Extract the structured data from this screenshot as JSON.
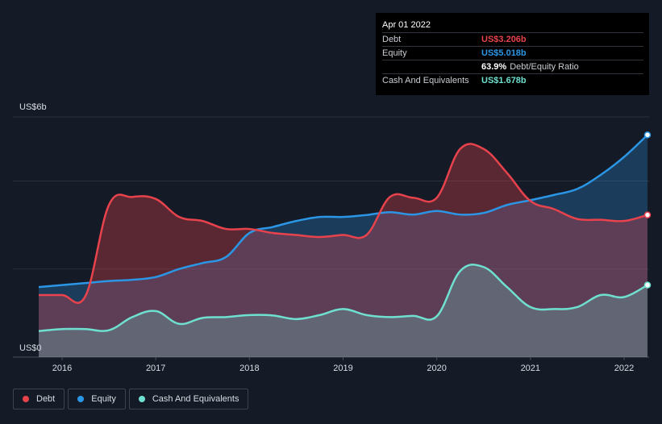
{
  "tooltip": {
    "date": "Apr 01 2022",
    "rows": [
      {
        "label": "Debt",
        "value": "US$3.206b",
        "extra": ""
      },
      {
        "label": "Equity",
        "value": "US$5.018b",
        "extra": ""
      },
      {
        "label": "",
        "value": "63.9%",
        "extra": "Debt/Equity Ratio"
      },
      {
        "label": "Cash And Equivalents",
        "value": "US$1.678b",
        "extra": ""
      }
    ]
  },
  "legend": [
    {
      "label": "Debt",
      "color": "#e8434c"
    },
    {
      "label": "Equity",
      "color": "#2b96e6"
    },
    {
      "label": "Cash And Equivalents",
      "color": "#6fe0cf"
    }
  ],
  "chart_data": {
    "type": "area",
    "title": "",
    "xlabel": "",
    "ylabel": "",
    "y_top_label": "US$6b",
    "y_bottom_label": "US$0",
    "ylim": [
      0,
      6
    ],
    "xlim": [
      2015.75,
      2022.25
    ],
    "x_ticks": [
      {
        "value": 2016,
        "label": "2016"
      },
      {
        "value": 2017,
        "label": "2017"
      },
      {
        "value": 2018,
        "label": "2018"
      },
      {
        "value": 2019,
        "label": "2019"
      },
      {
        "value": 2020,
        "label": "2020"
      },
      {
        "value": 2021,
        "label": "2021"
      },
      {
        "value": 2022,
        "label": "2022"
      }
    ],
    "gridlines_y": [
      0,
      2.2,
      4.4,
      6
    ],
    "grid": true,
    "legend_position": "bottom-left",
    "series": [
      {
        "name": "Equity",
        "color": "#2b96e6",
        "x": [
          2015.75,
          2016.0,
          2016.25,
          2016.5,
          2016.75,
          2017.0,
          2017.25,
          2017.5,
          2017.75,
          2018.0,
          2018.25,
          2018.5,
          2018.75,
          2019.0,
          2019.25,
          2019.5,
          2019.75,
          2020.0,
          2020.25,
          2020.5,
          2020.75,
          2021.0,
          2021.25,
          2021.5,
          2021.75,
          2022.0,
          2022.25
        ],
        "values": [
          1.75,
          1.8,
          1.85,
          1.9,
          1.93,
          2.0,
          2.2,
          2.35,
          2.5,
          3.1,
          3.25,
          3.4,
          3.5,
          3.5,
          3.55,
          3.62,
          3.56,
          3.65,
          3.56,
          3.6,
          3.8,
          3.92,
          4.05,
          4.2,
          4.55,
          5.0,
          5.55
        ]
      },
      {
        "name": "Debt",
        "color": "#e8434c",
        "x": [
          2015.75,
          2016.0,
          2016.25,
          2016.5,
          2016.75,
          2017.0,
          2017.25,
          2017.5,
          2017.75,
          2018.0,
          2018.25,
          2018.5,
          2018.75,
          2019.0,
          2019.25,
          2019.5,
          2019.75,
          2020.0,
          2020.25,
          2020.5,
          2020.75,
          2021.0,
          2021.25,
          2021.5,
          2021.75,
          2022.0,
          2022.25
        ],
        "values": [
          1.55,
          1.55,
          1.53,
          3.8,
          4.0,
          3.95,
          3.5,
          3.4,
          3.2,
          3.2,
          3.1,
          3.05,
          3.0,
          3.05,
          3.05,
          4.0,
          3.98,
          3.98,
          5.2,
          5.2,
          4.6,
          3.9,
          3.7,
          3.45,
          3.43,
          3.4,
          3.55
        ]
      },
      {
        "name": "Cash And Equivalents",
        "color": "#6fe0cf",
        "x": [
          2015.75,
          2016.0,
          2016.25,
          2016.5,
          2016.75,
          2017.0,
          2017.25,
          2017.5,
          2017.75,
          2018.0,
          2018.25,
          2018.5,
          2018.75,
          2019.0,
          2019.25,
          2019.5,
          2019.75,
          2020.0,
          2020.25,
          2020.5,
          2020.75,
          2021.0,
          2021.25,
          2021.5,
          2021.75,
          2022.0,
          2022.25
        ],
        "values": [
          0.65,
          0.7,
          0.7,
          0.67,
          1.0,
          1.15,
          0.83,
          0.98,
          1.0,
          1.05,
          1.04,
          0.95,
          1.05,
          1.2,
          1.05,
          1.0,
          1.03,
          1.02,
          2.15,
          2.25,
          1.75,
          1.25,
          1.2,
          1.25,
          1.55,
          1.5,
          1.8
        ]
      }
    ]
  }
}
